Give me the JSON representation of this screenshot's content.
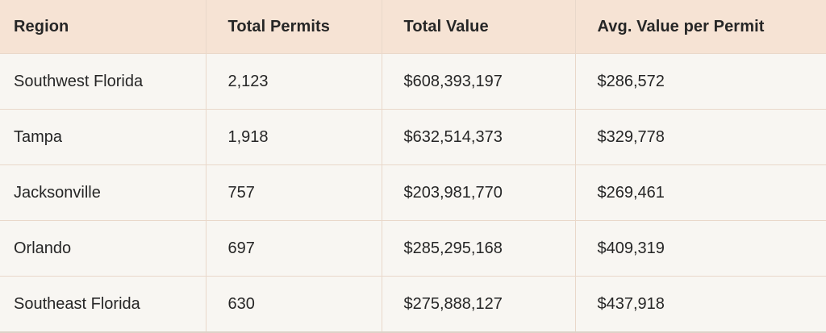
{
  "table": {
    "columns": [
      "Region",
      "Total Permits",
      "Total Value",
      "Avg. Value per Permit"
    ],
    "rows": [
      [
        "Southwest Florida",
        "2,123",
        "$608,393,197",
        "$286,572"
      ],
      [
        "Tampa",
        "1,918",
        "$632,514,373",
        "$329,778"
      ],
      [
        "Jacksonville",
        "757",
        "$203,981,770",
        "$269,461"
      ],
      [
        "Orlando",
        "697",
        "$285,295,168",
        "$409,319"
      ],
      [
        "Southeast Florida",
        "630",
        "$275,888,127",
        "$437,918"
      ]
    ]
  },
  "colors": {
    "header_bg": "#f6e3d4",
    "row_bg": "#f8f6f2",
    "border": "#e9d8ca",
    "bottom_border": "#ddd2c8",
    "text": "#262626"
  },
  "chart_data": {
    "type": "table",
    "title": "",
    "columns": [
      "Region",
      "Total Permits",
      "Total Value",
      "Avg. Value per Permit"
    ],
    "categories": [
      "Southwest Florida",
      "Tampa",
      "Jacksonville",
      "Orlando",
      "Southeast Florida"
    ],
    "series": [
      {
        "name": "Total Permits",
        "values": [
          2123,
          1918,
          757,
          697,
          630
        ]
      },
      {
        "name": "Total Value",
        "values": [
          608393197,
          632514373,
          203981770,
          285295168,
          275888127
        ]
      },
      {
        "name": "Avg. Value per Permit",
        "values": [
          286572,
          329778,
          269461,
          409319,
          437918
        ]
      }
    ]
  }
}
